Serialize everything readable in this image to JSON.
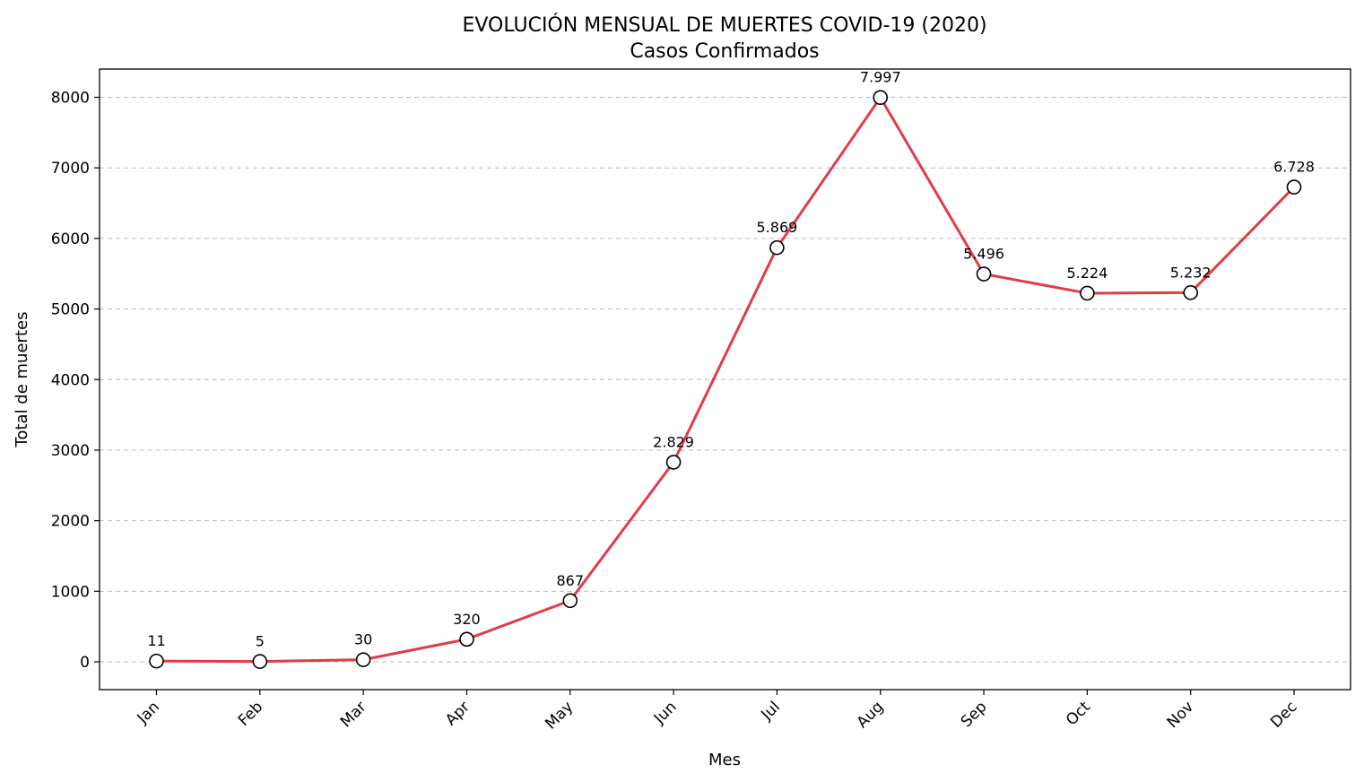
{
  "chart_data": {
    "type": "line",
    "title": "EVOLUCIÓN MENSUAL DE MUERTES COVID-19 (2020)",
    "subtitle": "Casos Confirmados",
    "xlabel": "Mes",
    "ylabel": "Total de muertes",
    "categories": [
      "Jan",
      "Feb",
      "Mar",
      "Apr",
      "May",
      "Jun",
      "Jul",
      "Aug",
      "Sep",
      "Oct",
      "Nov",
      "Dec"
    ],
    "series": [
      {
        "values": [
          11,
          5,
          30,
          320,
          867,
          2829,
          5869,
          7997,
          5496,
          5224,
          5232,
          6728
        ],
        "labels": [
          "11",
          "5",
          "30",
          "320",
          "867",
          "2.829",
          "5.869",
          "7.997",
          "5.496",
          "5.224",
          "5.232",
          "6.728"
        ],
        "color": "#e03c4a",
        "marker": "circle-open"
      }
    ],
    "ylim": [
      -400,
      8400
    ],
    "yticks": [
      0,
      1000,
      2000,
      3000,
      4000,
      5000,
      6000,
      7000,
      8000
    ],
    "ytick_labels": [
      "0",
      "1000",
      "2000",
      "3000",
      "4000",
      "5000",
      "6000",
      "7000",
      "8000"
    ],
    "grid": "y-dashed",
    "legend": "none"
  }
}
